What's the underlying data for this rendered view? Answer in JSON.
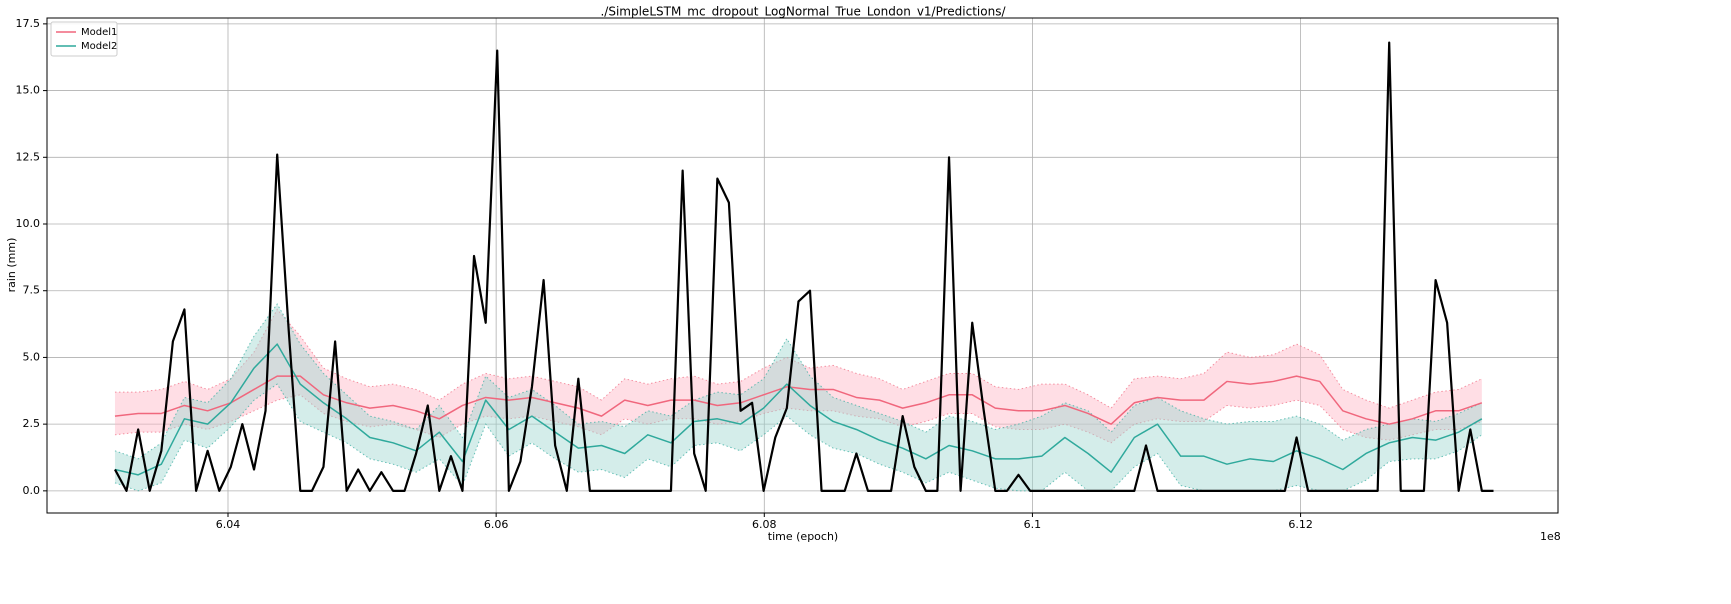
{
  "chart_data": {
    "type": "line",
    "title": "./SimpleLSTM_mc_dropout_LogNormal_True_London_v1/Predictions/",
    "xlabel": "time (epoch)",
    "ylabel": "rain (mm)",
    "x_offset_label": "1e8",
    "xlim": [
      6.0265,
      6.1392
    ],
    "ylim": [
      -0.83,
      17.72
    ],
    "xticks": [
      6.04,
      6.06,
      6.08,
      6.1,
      6.12
    ],
    "yticks": [
      {
        "value": 0,
        "label": "0.0"
      },
      2.5,
      {
        "value": 5,
        "label": "5.0"
      },
      7.5,
      {
        "value": 10,
        "label": "10.0"
      },
      12.5,
      {
        "value": 15,
        "label": "15.0"
      },
      17.5
    ],
    "grid": true,
    "legend": "upper left",
    "series": [
      {
        "name": "Model1",
        "color": "#f0677d",
        "band_color": "#ffb6c6",
        "x": [
          6.03157,
          6.0333,
          6.03503,
          6.03675,
          6.03848,
          6.04021,
          6.04194,
          6.04367,
          6.04539,
          6.04712,
          6.04885,
          6.05058,
          6.05231,
          6.05403,
          6.05576,
          6.05749,
          6.05922,
          6.06095,
          6.06267,
          6.0644,
          6.06613,
          6.06786,
          6.06959,
          6.07131,
          6.07304,
          6.07477,
          6.0765,
          6.07823,
          6.07995,
          6.08168,
          6.08341,
          6.08514,
          6.08687,
          6.08859,
          6.09032,
          6.09205,
          6.09378,
          6.09551,
          6.09723,
          6.09896,
          6.10069,
          6.10242,
          6.10415,
          6.10587,
          6.1076,
          6.10933,
          6.11106,
          6.11279,
          6.11451,
          6.11624,
          6.11797,
          6.1197,
          6.12143,
          6.12315,
          6.12488,
          6.12661,
          6.12834,
          6.13007,
          6.13179,
          6.13352
        ],
        "values": [
          2.8,
          2.9,
          2.9,
          3.2,
          3.0,
          3.3,
          3.8,
          4.3,
          4.3,
          3.6,
          3.3,
          3.1,
          3.2,
          3.0,
          2.7,
          3.2,
          3.5,
          3.4,
          3.5,
          3.3,
          3.1,
          2.8,
          3.4,
          3.2,
          3.4,
          3.4,
          3.2,
          3.3,
          3.6,
          3.9,
          3.8,
          3.8,
          3.5,
          3.4,
          3.1,
          3.3,
          3.6,
          3.6,
          3.1,
          3.0,
          3.0,
          3.2,
          2.9,
          2.5,
          3.3,
          3.5,
          3.4,
          3.4,
          4.1,
          4.0,
          4.1,
          4.3,
          4.1,
          3.0,
          2.7,
          2.5,
          2.7,
          3.0,
          3.0,
          3.3
        ],
        "upper": [
          3.7,
          3.7,
          3.8,
          4.1,
          3.8,
          4.2,
          5.2,
          6.8,
          5.8,
          4.6,
          4.2,
          3.9,
          4.0,
          3.8,
          3.4,
          4.0,
          4.4,
          4.2,
          4.3,
          4.1,
          3.9,
          3.4,
          4.2,
          4.0,
          4.2,
          4.3,
          4.0,
          4.1,
          4.6,
          5.0,
          4.6,
          4.7,
          4.4,
          4.2,
          3.8,
          4.1,
          4.4,
          4.4,
          3.9,
          3.8,
          4.0,
          4.0,
          3.6,
          3.1,
          4.2,
          4.3,
          4.2,
          4.4,
          5.2,
          5.0,
          5.1,
          5.5,
          5.1,
          3.8,
          3.4,
          3.1,
          3.4,
          3.7,
          3.8,
          4.2
        ],
        "lower": [
          2.1,
          2.2,
          2.2,
          2.5,
          2.3,
          2.6,
          3.0,
          3.4,
          3.6,
          2.9,
          2.6,
          2.4,
          2.5,
          2.3,
          2.0,
          2.5,
          2.8,
          2.7,
          2.8,
          2.6,
          2.4,
          2.1,
          2.7,
          2.5,
          2.7,
          2.7,
          2.5,
          2.6,
          2.9,
          3.1,
          3.0,
          3.0,
          2.8,
          2.7,
          2.4,
          2.6,
          2.9,
          2.9,
          2.4,
          2.3,
          2.3,
          2.5,
          2.2,
          1.8,
          2.5,
          2.7,
          2.6,
          2.6,
          3.2,
          3.1,
          3.2,
          3.4,
          3.2,
          2.3,
          2.0,
          1.9,
          2.1,
          2.3,
          2.3,
          2.6
        ]
      },
      {
        "name": "Model2",
        "color": "#2fa99c",
        "band_color": "#9fd8d0",
        "x": [
          6.03157,
          6.0333,
          6.03503,
          6.03675,
          6.03848,
          6.04021,
          6.04194,
          6.04367,
          6.04539,
          6.04712,
          6.04885,
          6.05058,
          6.05231,
          6.05403,
          6.05576,
          6.05749,
          6.05922,
          6.06095,
          6.06267,
          6.0644,
          6.06613,
          6.06786,
          6.06959,
          6.07131,
          6.07304,
          6.07477,
          6.0765,
          6.07823,
          6.07995,
          6.08168,
          6.08341,
          6.08514,
          6.08687,
          6.08859,
          6.09032,
          6.09205,
          6.09378,
          6.09551,
          6.09723,
          6.09896,
          6.10069,
          6.10242,
          6.10415,
          6.10587,
          6.1076,
          6.10933,
          6.11106,
          6.11279,
          6.11451,
          6.11624,
          6.11797,
          6.1197,
          6.12143,
          6.12315,
          6.12488,
          6.12661,
          6.12834,
          6.13007,
          6.13179,
          6.13352
        ],
        "values": [
          0.8,
          0.6,
          1.0,
          2.7,
          2.5,
          3.3,
          4.6,
          5.5,
          4.0,
          3.3,
          2.7,
          2.0,
          1.8,
          1.5,
          2.2,
          1.1,
          3.4,
          2.3,
          2.8,
          2.2,
          1.6,
          1.7,
          1.4,
          2.1,
          1.8,
          2.6,
          2.7,
          2.5,
          3.1,
          4.0,
          3.2,
          2.6,
          2.3,
          1.9,
          1.6,
          1.2,
          1.7,
          1.5,
          1.2,
          1.2,
          1.3,
          2.0,
          1.4,
          0.7,
          2.0,
          2.5,
          1.3,
          1.3,
          1.0,
          1.2,
          1.1,
          1.5,
          1.2,
          0.8,
          1.4,
          1.8,
          2.0,
          1.9,
          2.2,
          2.7
        ],
        "upper": [
          1.5,
          1.2,
          1.8,
          3.5,
          3.3,
          4.2,
          5.8,
          7.0,
          5.5,
          4.4,
          3.6,
          2.8,
          2.6,
          2.3,
          3.2,
          2.0,
          4.3,
          3.5,
          3.8,
          3.2,
          2.5,
          2.6,
          2.4,
          3.0,
          2.8,
          3.4,
          3.7,
          3.6,
          4.2,
          5.7,
          4.3,
          3.5,
          3.2,
          2.9,
          2.6,
          2.2,
          2.8,
          2.6,
          2.3,
          2.5,
          2.8,
          3.3,
          3.0,
          2.2,
          3.2,
          3.5,
          3.0,
          2.7,
          2.5,
          2.6,
          2.6,
          2.8,
          2.5,
          1.9,
          2.3,
          2.5,
          2.7,
          2.6,
          2.9,
          3.3
        ],
        "lower": [
          0.3,
          0.0,
          0.3,
          1.9,
          1.6,
          2.4,
          3.4,
          4.0,
          2.6,
          2.2,
          1.8,
          1.2,
          1.0,
          0.7,
          1.2,
          0.2,
          2.5,
          1.3,
          1.8,
          1.2,
          0.7,
          0.8,
          0.5,
          1.2,
          0.9,
          1.7,
          1.8,
          1.5,
          2.1,
          2.8,
          2.1,
          1.6,
          1.4,
          1.0,
          0.7,
          0.3,
          0.7,
          0.4,
          0.1,
          0.0,
          0.0,
          0.7,
          0.0,
          0.0,
          0.9,
          1.4,
          0.2,
          0.0,
          0.0,
          0.0,
          0.0,
          0.2,
          0.0,
          0.0,
          0.4,
          1.1,
          1.2,
          1.2,
          1.5,
          2.1
        ]
      },
      {
        "color": "#000000",
        "x": [
          6.03157,
          6.03243,
          6.0333,
          6.03416,
          6.03503,
          6.03589,
          6.03675,
          6.03762,
          6.03848,
          6.03935,
          6.04021,
          6.04107,
          6.04194,
          6.0428,
          6.04367,
          6.04453,
          6.04539,
          6.04626,
          6.04712,
          6.04799,
          6.04885,
          6.04971,
          6.05058,
          6.05144,
          6.05231,
          6.05317,
          6.05403,
          6.0549,
          6.05576,
          6.05663,
          6.05749,
          6.05835,
          6.05922,
          6.06008,
          6.06095,
          6.06181,
          6.06267,
          6.06354,
          6.0644,
          6.06527,
          6.06613,
          6.06699,
          6.06786,
          6.06872,
          6.06959,
          6.07045,
          6.07131,
          6.07218,
          6.07304,
          6.07391,
          6.07477,
          6.07563,
          6.0765,
          6.07736,
          6.07823,
          6.07909,
          6.07995,
          6.08082,
          6.08168,
          6.08255,
          6.08341,
          6.08427,
          6.08514,
          6.086,
          6.08687,
          6.08773,
          6.08859,
          6.08946,
          6.09032,
          6.09119,
          6.09205,
          6.09291,
          6.09378,
          6.09464,
          6.09551,
          6.09637,
          6.09723,
          6.0981,
          6.09896,
          6.09983,
          6.10069,
          6.10155,
          6.10242,
          6.10328,
          6.10415,
          6.10501,
          6.10587,
          6.10674,
          6.1076,
          6.10847,
          6.10933,
          6.11019,
          6.11106,
          6.11192,
          6.11279,
          6.11365,
          6.11451,
          6.11538,
          6.11624,
          6.11711,
          6.11797,
          6.11883,
          6.1197,
          6.12056,
          6.12143,
          6.12229,
          6.12315,
          6.12402,
          6.12488,
          6.12575,
          6.12661,
          6.12747,
          6.12834,
          6.1292,
          6.13007,
          6.13093,
          6.13179,
          6.13266,
          6.13352,
          6.13439
        ],
        "values": [
          0.8,
          0,
          2.3,
          0,
          1.5,
          5.6,
          6.8,
          0,
          1.5,
          0,
          0.9,
          2.5,
          0.8,
          3.0,
          12.6,
          6.0,
          0,
          0,
          0.9,
          5.6,
          0,
          0.8,
          0,
          0.7,
          0,
          0,
          1.4,
          3.2,
          0,
          1.3,
          0,
          8.8,
          6.3,
          16.5,
          0,
          1.1,
          3.9,
          7.9,
          1.7,
          0,
          4.2,
          0,
          0,
          0,
          0,
          0,
          0,
          0,
          0,
          12.0,
          1.4,
          0,
          11.7,
          10.8,
          3.0,
          3.3,
          0,
          2.0,
          3.1,
          7.1,
          7.5,
          0,
          0,
          0,
          1.4,
          0,
          0,
          0,
          2.8,
          0.9,
          0,
          0,
          12.5,
          0,
          6.3,
          3.0,
          0,
          0,
          0.6,
          0,
          0,
          0,
          0,
          0,
          0,
          0,
          0,
          0,
          0,
          1.7,
          0,
          0,
          0,
          0,
          0,
          0,
          0,
          0,
          0,
          0,
          0,
          0,
          2.0,
          0,
          0,
          0,
          0,
          0,
          0,
          0,
          16.8,
          0,
          0,
          0,
          7.9,
          6.3,
          0,
          2.3,
          0,
          0
        ]
      }
    ]
  }
}
